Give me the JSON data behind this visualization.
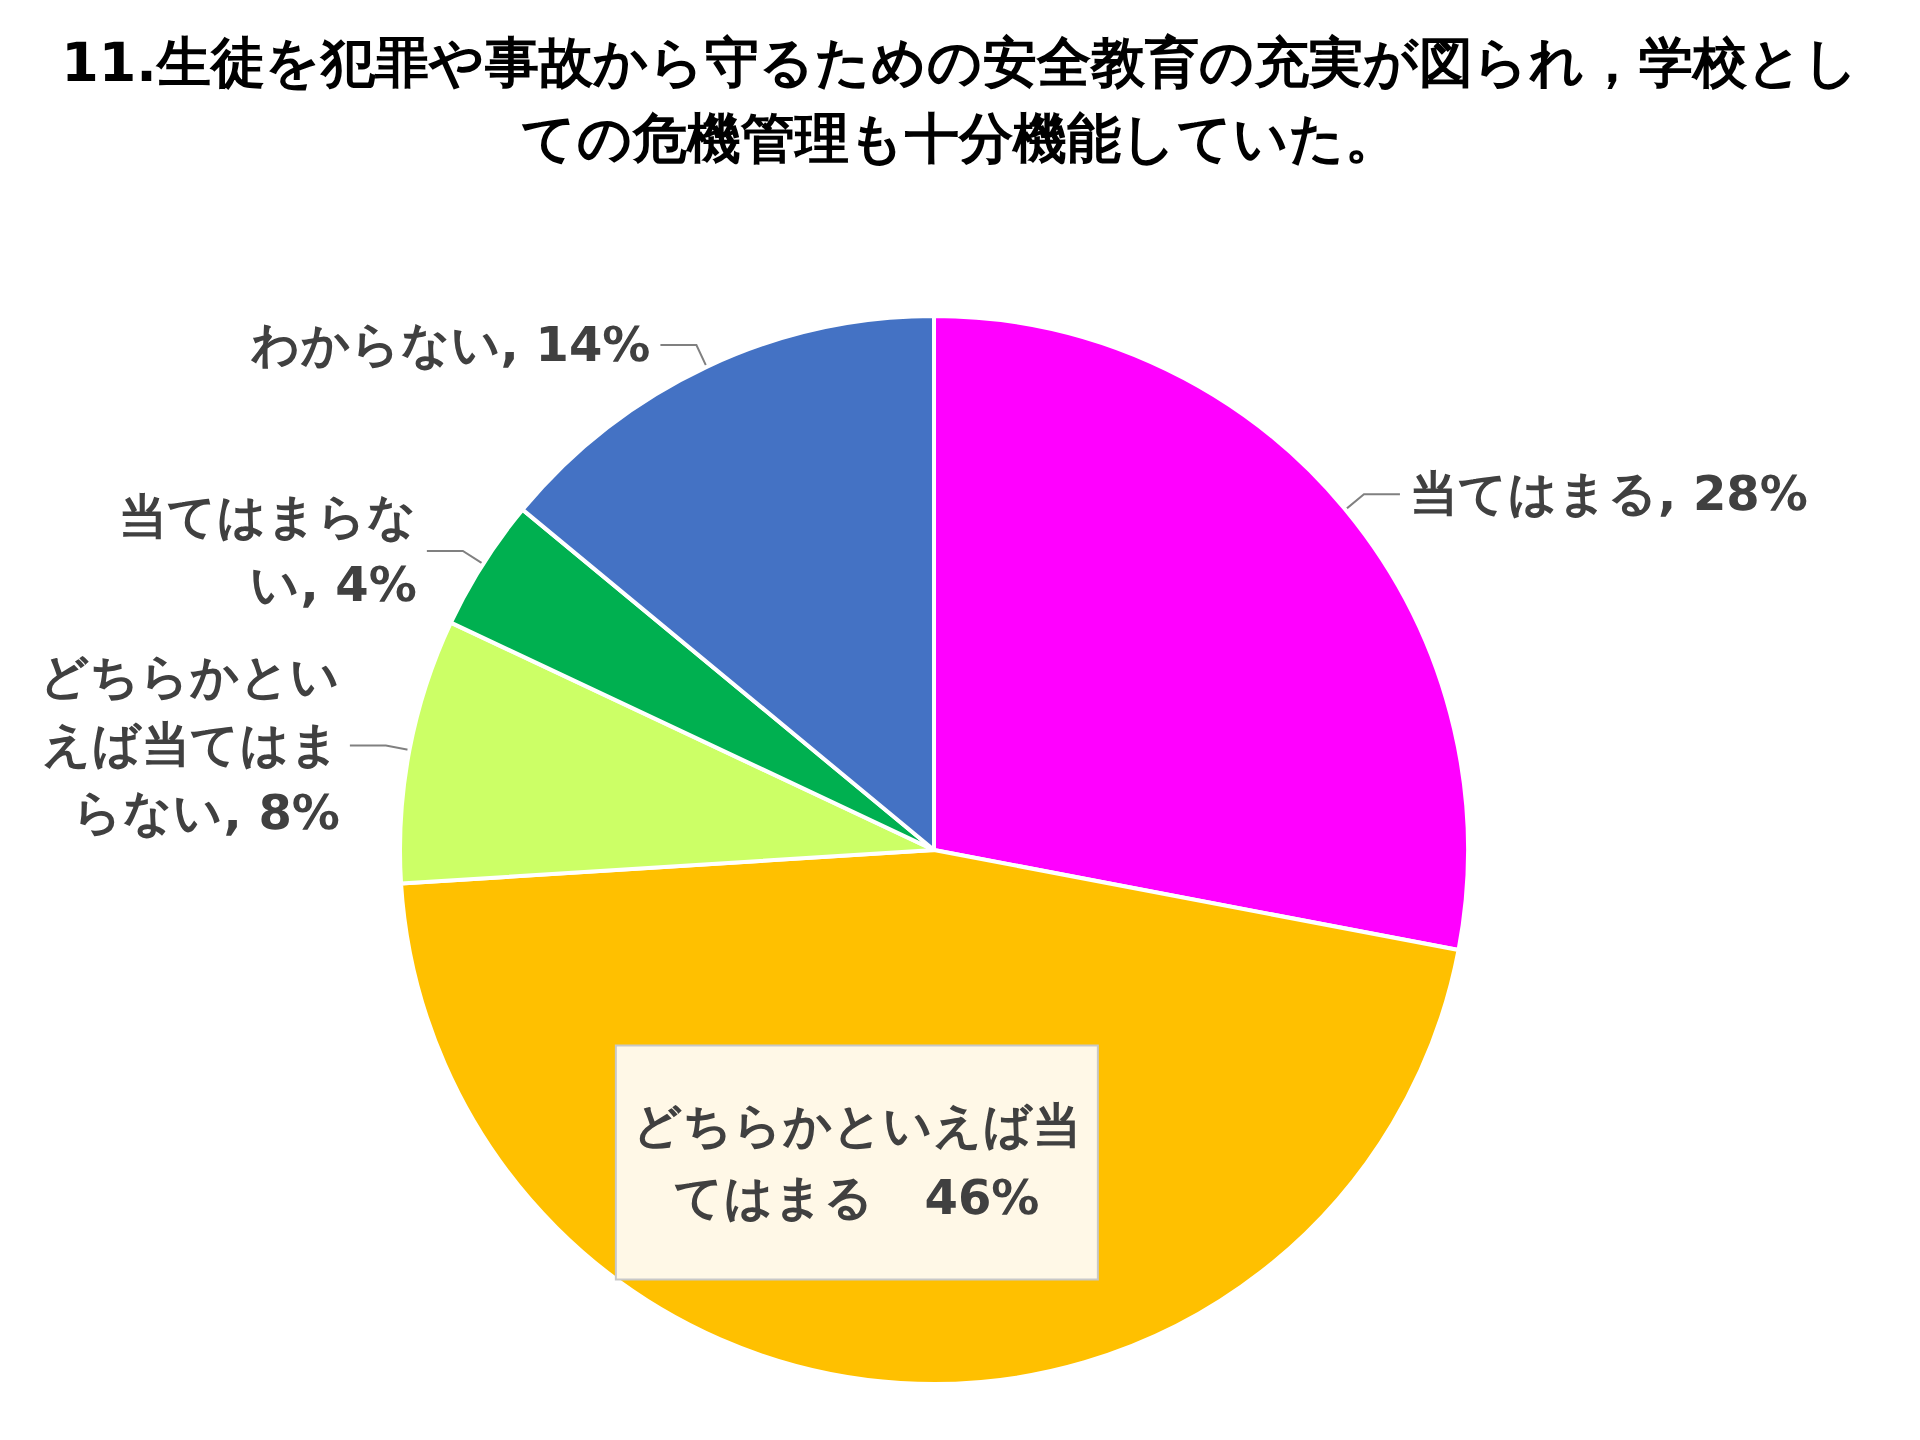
{
  "chart_data": {
    "type": "pie",
    "title": "11.生徒を犯罪や事故から守るための安全教育の充実が図られ，学校としての危機管理も十分機能していた。",
    "categories": [
      "当てはまる",
      "どちらかといえば当てはまる",
      "どちらかといえば当てはまらない",
      "当てはまらない",
      "わからない"
    ],
    "values": [
      28,
      46,
      8,
      4,
      14
    ],
    "value_labels": [
      "28%",
      "46%",
      "8%",
      "4%",
      "14%"
    ],
    "colors": [
      "#ff00ff",
      "#ffc000",
      "#ccff66",
      "#00b050",
      "#4472c4"
    ],
    "legend": false
  }
}
